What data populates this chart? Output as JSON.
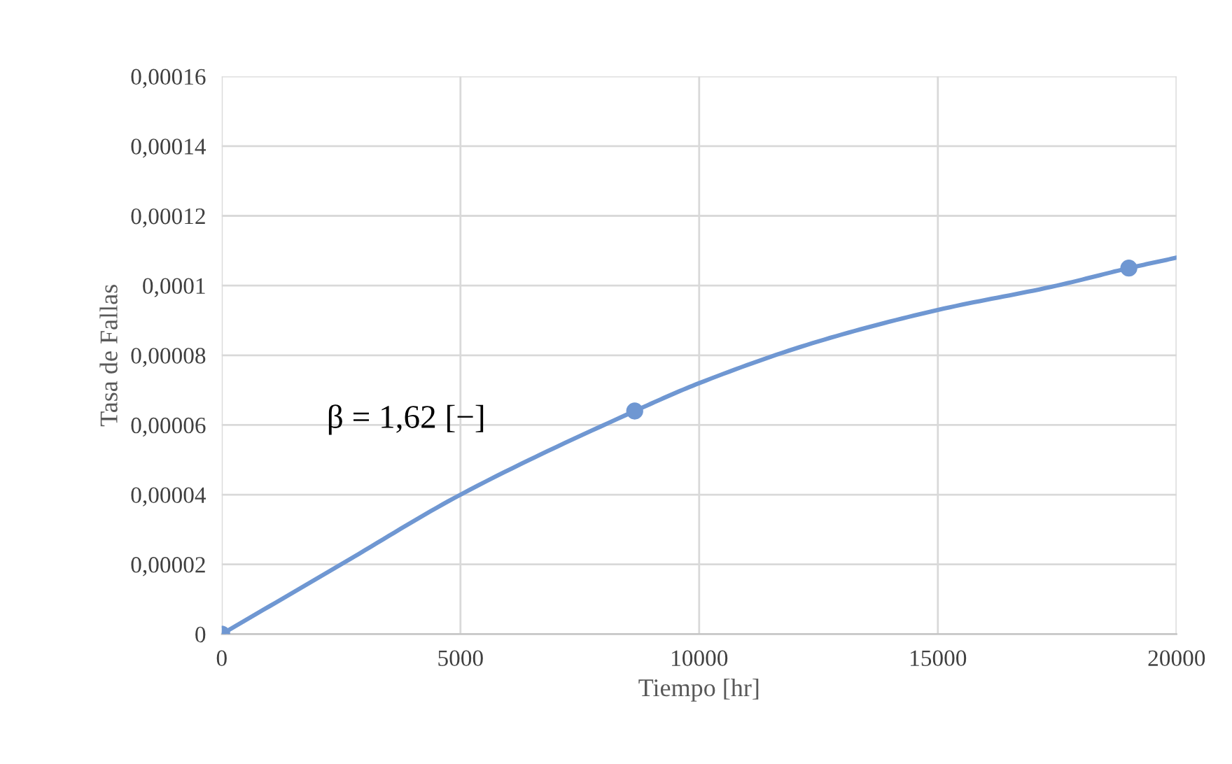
{
  "chart_data": {
    "type": "line",
    "xlabel": "Tiempo [hr]",
    "ylabel": "Tasa de Fallas",
    "xlim": [
      0,
      20000
    ],
    "xticks": [
      0,
      5000,
      10000,
      15000,
      20000
    ],
    "ylim": [
      0,
      0.00016
    ],
    "yticks": [
      {
        "value": 0,
        "label": "0"
      },
      {
        "value": 2e-05,
        "label": "0,00002"
      },
      {
        "value": 4e-05,
        "label": "0,00004"
      },
      {
        "value": 6e-05,
        "label": "0,00006"
      },
      {
        "value": 8e-05,
        "label": "0,00008"
      },
      {
        "value": 0.0001,
        "label": "0,0001"
      },
      {
        "value": 0.00012,
        "label": "0,00012"
      },
      {
        "value": 0.00014,
        "label": "0,00014"
      },
      {
        "value": 0.00016,
        "label": "0,00016"
      }
    ],
    "grid": true,
    "legend": false,
    "annotations": [
      "β = 1,62 [−]"
    ],
    "series": [
      {
        "color": "#6f97d2",
        "marker": "none",
        "x": [
          0,
          2500,
          5000,
          8650,
          10000,
          12500,
          15000,
          17500,
          19000,
          20000
        ],
        "values": [
          0,
          2e-05,
          4e-05,
          6.4e-05,
          7.2e-05,
          8.4e-05,
          9.3e-05,
          0.0001,
          0.000105,
          0.000108
        ]
      },
      {
        "type": "scatter",
        "color": "#6f97d2",
        "marker": "circle",
        "x": [
          0,
          8650,
          19000
        ],
        "values": [
          0,
          6.4e-05,
          0.000105
        ]
      }
    ]
  }
}
